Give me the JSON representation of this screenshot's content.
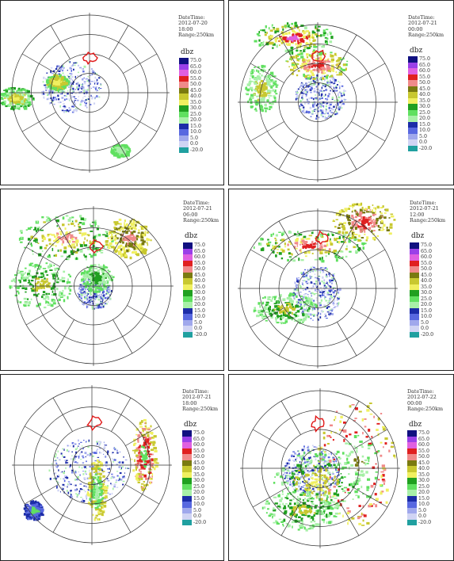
{
  "labels": {
    "datetime": "DateTime:",
    "unit": "dbz"
  },
  "legend": [
    {
      "value": "75.0",
      "color": "#101080"
    },
    {
      "value": "65.0",
      "color": "#9a40e8"
    },
    {
      "value": "60.0",
      "color": "#e060e0"
    },
    {
      "value": "55.0",
      "color": "#e02020"
    },
    {
      "value": "50.0",
      "color": "#f08a8a"
    },
    {
      "value": "45.0",
      "color": "#7a7a10"
    },
    {
      "value": "40.0",
      "color": "#c8c830"
    },
    {
      "value": "35.0",
      "color": "#f0f060"
    },
    {
      "value": "30.0",
      "color": "#20a020"
    },
    {
      "value": "25.0",
      "color": "#60e060"
    },
    {
      "value": "20.0",
      "color": "#a8f0a8"
    },
    {
      "value": "15.0",
      "color": "#1c2ca8"
    },
    {
      "value": "10.0",
      "color": "#5868e0"
    },
    {
      "value": "5.0",
      "color": "#a0a8ec"
    },
    {
      "value": "0.0",
      "color": "#d0d4f4"
    },
    {
      "value": "-20.0",
      "color": "#20a0a0"
    }
  ],
  "panels": [
    {
      "date": "2012-07-20",
      "time": "18:00",
      "range": "Range:250km"
    },
    {
      "date": "2012-07-21",
      "time": "00:00",
      "range": "Range:250km"
    },
    {
      "date": "2012-07-21",
      "time": "06:00",
      "range": "Range:250km"
    },
    {
      "date": "2012-07-21",
      "time": "12:00",
      "range": "Range:250km"
    },
    {
      "date": "2012-07-21",
      "time": "18:00",
      "range": "Range:250km"
    },
    {
      "date": "2012-07-22",
      "time": "00:00",
      "range": "Range:250km"
    }
  ]
}
